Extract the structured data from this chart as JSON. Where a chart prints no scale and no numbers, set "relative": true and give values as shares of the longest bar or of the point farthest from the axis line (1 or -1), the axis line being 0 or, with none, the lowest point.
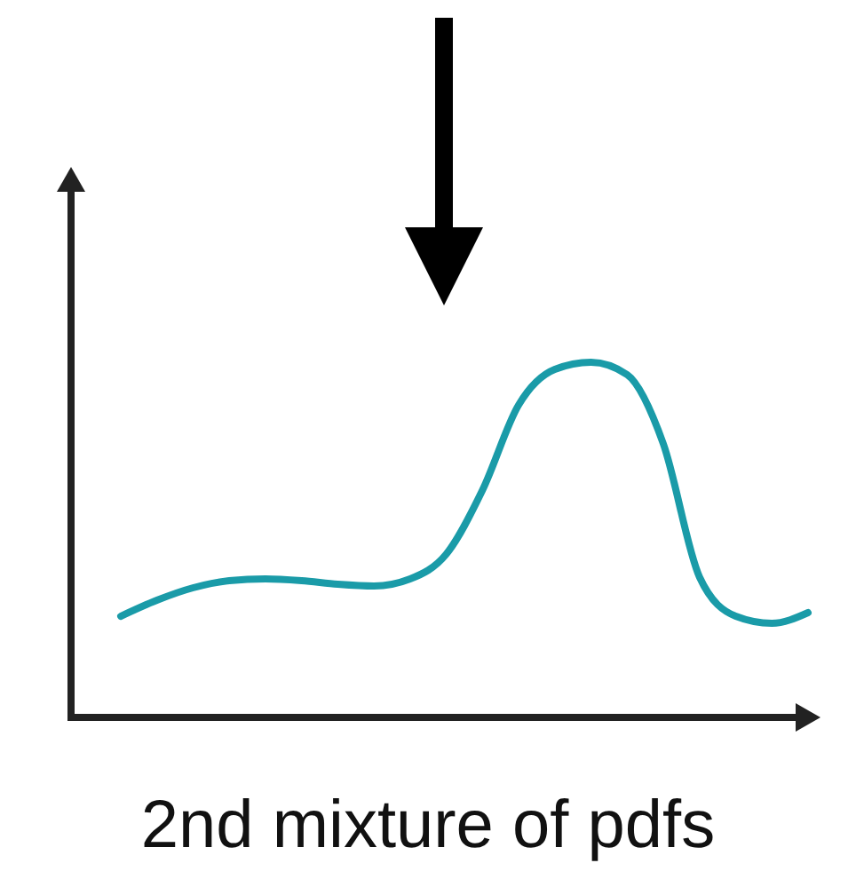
{
  "chart_data": {
    "type": "line",
    "relative": true,
    "xlabel": "2nd mixture of pdfs",
    "categories": [
      null,
      null,
      null,
      null,
      null,
      null,
      null,
      null,
      null,
      null,
      null,
      null,
      null,
      null,
      null,
      null,
      null,
      null,
      null,
      null
    ],
    "series": [
      {
        "color": "#1a9ba8",
        "values": [
          0.285,
          0.33,
          0.365,
          0.385,
          0.39,
          0.385,
          0.375,
          0.37,
          0.39,
          0.46,
          0.64,
          0.88,
          0.98,
          1,
          0.965,
          0.77,
          0.395,
          0.285,
          0.265,
          0.295
        ]
      }
    ],
    "marker": "none",
    "line_style": "solid"
  }
}
